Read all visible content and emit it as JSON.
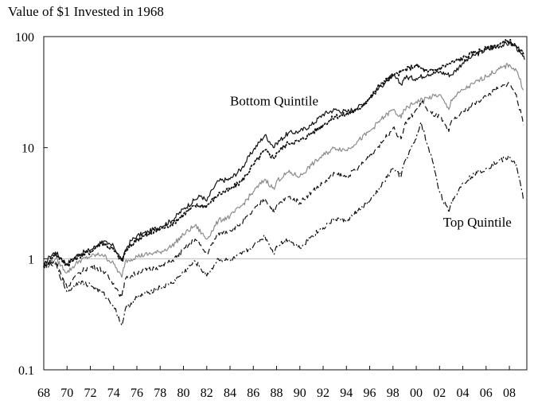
{
  "chart_data": {
    "type": "line",
    "title": "Value of $1 Invested in 1968",
    "xlabel": "",
    "ylabel": "",
    "y_scale": "log",
    "ylim": [
      0.1,
      100
    ],
    "xlim": [
      1968,
      2009.5
    ],
    "y_ticks": [
      {
        "value": 0.1,
        "label": "0.1"
      },
      {
        "value": 1,
        "label": "1"
      },
      {
        "value": 10,
        "label": "10"
      },
      {
        "value": 100,
        "label": "100"
      }
    ],
    "x_ticks": [
      {
        "value": 1968,
        "label": "68"
      },
      {
        "value": 1970,
        "label": "70"
      },
      {
        "value": 1972,
        "label": "72"
      },
      {
        "value": 1974,
        "label": "74"
      },
      {
        "value": 1976,
        "label": "76"
      },
      {
        "value": 1978,
        "label": "78"
      },
      {
        "value": 1980,
        "label": "80"
      },
      {
        "value": 1982,
        "label": "82"
      },
      {
        "value": 1984,
        "label": "84"
      },
      {
        "value": 1986,
        "label": "86"
      },
      {
        "value": 1988,
        "label": "88"
      },
      {
        "value": 1990,
        "label": "90"
      },
      {
        "value": 1992,
        "label": "92"
      },
      {
        "value": 1994,
        "label": "94"
      },
      {
        "value": 1996,
        "label": "96"
      },
      {
        "value": 1998,
        "label": "98"
      },
      {
        "value": 2000,
        "label": "00"
      },
      {
        "value": 2002,
        "label": "02"
      },
      {
        "value": 2004,
        "label": "04"
      },
      {
        "value": 2006,
        "label": "06"
      },
      {
        "value": 2008,
        "label": "08"
      }
    ],
    "reference_line": {
      "y": 1,
      "color": "#bdbdbd"
    },
    "grid": false,
    "annotations": [
      {
        "text": "Bottom Quintile",
        "x": 1984,
        "y": 24,
        "anchor": "start"
      },
      {
        "text": "Top Quintile",
        "x": 2002.3,
        "y": 1.95,
        "anchor": "start"
      }
    ],
    "series": [
      {
        "style": "solid",
        "color": "#111111",
        "points": [
          [
            1968,
            0.85
          ],
          [
            1968.5,
            1.05
          ],
          [
            1969,
            1.15
          ],
          [
            1969.5,
            1.0
          ],
          [
            1970,
            0.9
          ],
          [
            1970.5,
            1.0
          ],
          [
            1971,
            1.1
          ],
          [
            1971.5,
            1.15
          ],
          [
            1972,
            1.2
          ],
          [
            1972.5,
            1.3
          ],
          [
            1973,
            1.45
          ],
          [
            1973.5,
            1.35
          ],
          [
            1974,
            1.3
          ],
          [
            1974.5,
            1.05
          ],
          [
            1974.8,
            0.95
          ],
          [
            1975,
            1.2
          ],
          [
            1975.5,
            1.45
          ],
          [
            1976,
            1.6
          ],
          [
            1977,
            1.75
          ],
          [
            1978,
            1.95
          ],
          [
            1979,
            2.2
          ],
          [
            1980,
            2.8
          ],
          [
            1981,
            3.4
          ],
          [
            1981.5,
            3.7
          ],
          [
            1982,
            3.3
          ],
          [
            1982.5,
            4.2
          ],
          [
            1983,
            5.0
          ],
          [
            1984,
            5.2
          ],
          [
            1985,
            6.5
          ],
          [
            1986,
            9.5
          ],
          [
            1987,
            13.0
          ],
          [
            1987.8,
            10.0
          ],
          [
            1988,
            11.0
          ],
          [
            1989,
            13.5
          ],
          [
            1990,
            14.0
          ],
          [
            1991,
            16.0
          ],
          [
            1992,
            20.0
          ],
          [
            1993,
            22.0
          ],
          [
            1994,
            21.0
          ],
          [
            1995,
            23.0
          ],
          [
            1996,
            28.0
          ],
          [
            1997,
            36.0
          ],
          [
            1998,
            45.0
          ],
          [
            1998.7,
            37.0
          ],
          [
            1999,
            43.0
          ],
          [
            2000,
            42.0
          ],
          [
            2001,
            46.0
          ],
          [
            2002,
            48.0
          ],
          [
            2003,
            45.0
          ],
          [
            2004,
            58.0
          ],
          [
            2005,
            68.0
          ],
          [
            2006,
            76.0
          ],
          [
            2007,
            82.0
          ],
          [
            2008,
            87.0
          ],
          [
            2008.5,
            83.0
          ],
          [
            2009,
            70.0
          ],
          [
            2009.3,
            62.0
          ]
        ]
      },
      {
        "style": "dotted",
        "color": "#111111",
        "points": [
          [
            1968,
            0.85
          ],
          [
            1969,
            1.1
          ],
          [
            1970,
            0.88
          ],
          [
            1971,
            1.05
          ],
          [
            1972,
            1.15
          ],
          [
            1973,
            1.4
          ],
          [
            1974,
            1.2
          ],
          [
            1974.7,
            0.95
          ],
          [
            1975,
            1.15
          ],
          [
            1976,
            1.5
          ],
          [
            1977,
            1.65
          ],
          [
            1978,
            1.85
          ],
          [
            1979,
            2.05
          ],
          [
            1980,
            2.5
          ],
          [
            1981,
            3.0
          ],
          [
            1982,
            3.0
          ],
          [
            1983,
            3.8
          ],
          [
            1984,
            4.2
          ],
          [
            1985,
            5.0
          ],
          [
            1986,
            7.0
          ],
          [
            1987,
            9.5
          ],
          [
            1987.8,
            8.0
          ],
          [
            1988,
            9.0
          ],
          [
            1989,
            11.0
          ],
          [
            1990,
            11.5
          ],
          [
            1991,
            13.5
          ],
          [
            1992,
            16.0
          ],
          [
            1993,
            19.0
          ],
          [
            1994,
            20.0
          ],
          [
            1995,
            22.0
          ],
          [
            1996,
            28.0
          ],
          [
            1997,
            38.0
          ],
          [
            1998,
            44.0
          ],
          [
            1999,
            50.0
          ],
          [
            2000,
            55.0
          ],
          [
            2001,
            48.0
          ],
          [
            2002,
            52.0
          ],
          [
            2003,
            58.0
          ],
          [
            2004,
            64.0
          ],
          [
            2005,
            72.0
          ],
          [
            2006,
            78.0
          ],
          [
            2007,
            84.0
          ],
          [
            2008,
            92.0
          ],
          [
            2008.7,
            78.0
          ],
          [
            2009.2,
            70.0
          ]
        ]
      },
      {
        "style": "solid",
        "color": "#8c8c8c",
        "points": [
          [
            1968,
            0.85
          ],
          [
            1969,
            1.0
          ],
          [
            1970,
            0.75
          ],
          [
            1971,
            0.95
          ],
          [
            1972,
            1.05
          ],
          [
            1973,
            1.1
          ],
          [
            1974,
            0.9
          ],
          [
            1974.7,
            0.68
          ],
          [
            1975,
            0.95
          ],
          [
            1976,
            1.05
          ],
          [
            1977,
            1.1
          ],
          [
            1978,
            1.15
          ],
          [
            1979,
            1.3
          ],
          [
            1980,
            1.65
          ],
          [
            1981,
            2.0
          ],
          [
            1982,
            1.5
          ],
          [
            1983,
            2.2
          ],
          [
            1984,
            2.4
          ],
          [
            1985,
            3.0
          ],
          [
            1986,
            4.0
          ],
          [
            1987,
            5.2
          ],
          [
            1987.8,
            4.2
          ],
          [
            1988,
            5.0
          ],
          [
            1989,
            6.0
          ],
          [
            1990,
            5.5
          ],
          [
            1991,
            7.0
          ],
          [
            1992,
            8.5
          ],
          [
            1993,
            10.0
          ],
          [
            1994,
            9.5
          ],
          [
            1995,
            11.5
          ],
          [
            1996,
            14.0
          ],
          [
            1997,
            18.0
          ],
          [
            1998,
            22.0
          ],
          [
            1998.7,
            18.5
          ],
          [
            1999,
            22.0
          ],
          [
            2000,
            26.0
          ],
          [
            2001,
            28.0
          ],
          [
            2002,
            30.0
          ],
          [
            2002.8,
            22.0
          ],
          [
            2003,
            27.0
          ],
          [
            2004,
            33.0
          ],
          [
            2005,
            38.0
          ],
          [
            2006,
            44.0
          ],
          [
            2007,
            50.0
          ],
          [
            2008,
            56.0
          ],
          [
            2008.7,
            48.0
          ],
          [
            2009.2,
            33.0
          ]
        ]
      },
      {
        "style": "dashed",
        "color": "#111111",
        "points": [
          [
            1968,
            0.85
          ],
          [
            1969,
            0.95
          ],
          [
            1970,
            0.55
          ],
          [
            1971,
            0.75
          ],
          [
            1972,
            0.85
          ],
          [
            1973,
            0.8
          ],
          [
            1974,
            0.6
          ],
          [
            1974.7,
            0.45
          ],
          [
            1975,
            0.65
          ],
          [
            1976,
            0.75
          ],
          [
            1977,
            0.8
          ],
          [
            1978,
            0.85
          ],
          [
            1979,
            0.95
          ],
          [
            1980,
            1.2
          ],
          [
            1981,
            1.5
          ],
          [
            1982,
            1.1
          ],
          [
            1983,
            1.7
          ],
          [
            1984,
            1.8
          ],
          [
            1985,
            2.1
          ],
          [
            1986,
            2.7
          ],
          [
            1987,
            3.5
          ],
          [
            1987.8,
            2.6
          ],
          [
            1988,
            3.0
          ],
          [
            1989,
            3.6
          ],
          [
            1990,
            3.2
          ],
          [
            1991,
            4.0
          ],
          [
            1992,
            4.8
          ],
          [
            1993,
            5.8
          ],
          [
            1994,
            5.5
          ],
          [
            1995,
            6.5
          ],
          [
            1996,
            8.5
          ],
          [
            1997,
            11.0
          ],
          [
            1998,
            15.0
          ],
          [
            1998.7,
            12.0
          ],
          [
            1999,
            16.0
          ],
          [
            2000,
            22.0
          ],
          [
            2000.6,
            26.0
          ],
          [
            2001,
            21.0
          ],
          [
            2002,
            19.0
          ],
          [
            2002.8,
            14.0
          ],
          [
            2003,
            17.0
          ],
          [
            2004,
            21.0
          ],
          [
            2005,
            25.0
          ],
          [
            2006,
            29.0
          ],
          [
            2007,
            34.0
          ],
          [
            2008,
            38.0
          ],
          [
            2008.6,
            30.0
          ],
          [
            2009.2,
            16.0
          ]
        ]
      },
      {
        "style": "dashdot",
        "color": "#111111",
        "points": [
          [
            1968,
            0.85
          ],
          [
            1969,
            0.9
          ],
          [
            1970,
            0.5
          ],
          [
            1971,
            0.62
          ],
          [
            1972,
            0.58
          ],
          [
            1973,
            0.5
          ],
          [
            1974,
            0.38
          ],
          [
            1974.7,
            0.25
          ],
          [
            1975,
            0.35
          ],
          [
            1976,
            0.45
          ],
          [
            1977,
            0.5
          ],
          [
            1978,
            0.55
          ],
          [
            1979,
            0.6
          ],
          [
            1980,
            0.75
          ],
          [
            1981,
            0.95
          ],
          [
            1982,
            0.7
          ],
          [
            1983,
            1.0
          ],
          [
            1984,
            0.95
          ],
          [
            1985,
            1.1
          ],
          [
            1986,
            1.3
          ],
          [
            1987,
            1.6
          ],
          [
            1987.8,
            1.1
          ],
          [
            1988,
            1.3
          ],
          [
            1989,
            1.5
          ],
          [
            1990,
            1.25
          ],
          [
            1991,
            1.6
          ],
          [
            1992,
            1.9
          ],
          [
            1993,
            2.3
          ],
          [
            1994,
            2.2
          ],
          [
            1995,
            2.7
          ],
          [
            1996,
            3.3
          ],
          [
            1997,
            4.5
          ],
          [
            1998,
            6.5
          ],
          [
            1998.7,
            5.5
          ],
          [
            1999,
            7.5
          ],
          [
            2000,
            12.0
          ],
          [
            2000.4,
            17.0
          ],
          [
            2000.9,
            11.0
          ],
          [
            2001.5,
            7.0
          ],
          [
            2002,
            4.0
          ],
          [
            2002.8,
            2.6
          ],
          [
            2003,
            3.2
          ],
          [
            2004,
            4.8
          ],
          [
            2005,
            5.8
          ],
          [
            2006,
            6.5
          ],
          [
            2007,
            7.5
          ],
          [
            2008,
            8.2
          ],
          [
            2008.6,
            7.0
          ],
          [
            2009.2,
            3.4
          ]
        ]
      }
    ]
  }
}
